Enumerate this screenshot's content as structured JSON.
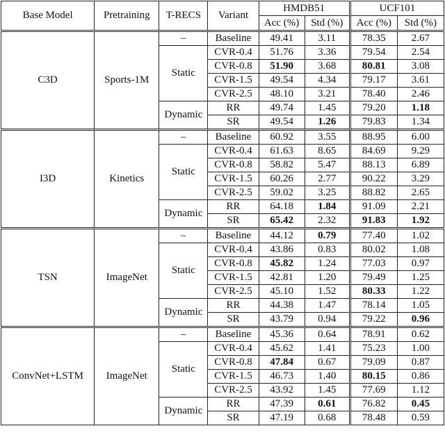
{
  "header": {
    "base_model": "Base Model",
    "pretraining": "Pretraining",
    "trecs": "T-RECS",
    "variant": "Variant",
    "datasets": [
      {
        "name": "HMDB51",
        "columns": [
          "Acc (%)",
          "Std (%)"
        ]
      },
      {
        "name": "UCF101",
        "columns": [
          "Acc (%)",
          "Std (%)"
        ]
      }
    ]
  },
  "groups": [
    {
      "base_model": "C3D",
      "pretraining": "Sports-1M",
      "recs": [
        {
          "label": "–",
          "rows": [
            {
              "variant": "Baseline",
              "cells": [
                "49.41",
                "3.11",
                "78.35",
                "2.67"
              ]
            }
          ]
        },
        {
          "label": "Static",
          "rows": [
            {
              "variant": "CVR-0.4",
              "cells": [
                "51.76",
                "3.36",
                "79.54",
                "2.54"
              ]
            },
            {
              "variant": "CVR-0.8",
              "cells": [
                "51.90",
                "3.68",
                "80.81",
                "3.08"
              ],
              "bold": [
                0,
                2
              ]
            },
            {
              "variant": "CVR-1.5",
              "cells": [
                "49.54",
                "4.34",
                "79.17",
                "3.61"
              ]
            },
            {
              "variant": "CVR-2.5",
              "cells": [
                "48.10",
                "3.21",
                "78.40",
                "2.46"
              ]
            }
          ]
        },
        {
          "label": "Dynamic",
          "rows": [
            {
              "variant": "RR",
              "cells": [
                "49.74",
                "1.45",
                "79.20",
                "1.18"
              ],
              "bold": [
                3
              ]
            },
            {
              "variant": "SR",
              "cells": [
                "49.54",
                "1.26",
                "79.83",
                "1.34"
              ],
              "bold": [
                1
              ]
            }
          ]
        }
      ]
    },
    {
      "base_model": "I3D",
      "pretraining": "Kinetics",
      "recs": [
        {
          "label": "–",
          "rows": [
            {
              "variant": "Baseline",
              "cells": [
                "60.92",
                "3.55",
                "88.95",
                "6.00"
              ]
            }
          ]
        },
        {
          "label": "Static",
          "rows": [
            {
              "variant": "CVR-0.4",
              "cells": [
                "61.63",
                "8.65",
                "84.69",
                "9.29"
              ]
            },
            {
              "variant": "CVR-0.8",
              "cells": [
                "58.82",
                "5.47",
                "88.13",
                "6.89"
              ]
            },
            {
              "variant": "CVR-1.5",
              "cells": [
                "60.26",
                "2.77",
                "90.22",
                "3.29"
              ]
            },
            {
              "variant": "CVR-2.5",
              "cells": [
                "59.02",
                "3.25",
                "88.82",
                "2.65"
              ]
            }
          ]
        },
        {
          "label": "Dynamic",
          "rows": [
            {
              "variant": "RR",
              "cells": [
                "64.18",
                "1.84",
                "91.09",
                "2.21"
              ],
              "bold": [
                1
              ]
            },
            {
              "variant": "SR",
              "cells": [
                "65.42",
                "2.32",
                "91.83",
                "1.92"
              ],
              "bold": [
                0,
                2,
                3
              ]
            }
          ]
        }
      ]
    },
    {
      "base_model": "TSN",
      "pretraining": "ImageNet",
      "recs": [
        {
          "label": "–",
          "rows": [
            {
              "variant": "Baseline",
              "cells": [
                "44.12",
                "0.79",
                "77.40",
                "1.02"
              ],
              "bold": [
                1
              ]
            }
          ]
        },
        {
          "label": "Static",
          "rows": [
            {
              "variant": "CVR-0.4",
              "cells": [
                "43.86",
                "0.83",
                "80.02",
                "1.08"
              ]
            },
            {
              "variant": "CVR-0.8",
              "cells": [
                "45.82",
                "1.24",
                "77.03",
                "0.97"
              ],
              "bold": [
                0
              ]
            },
            {
              "variant": "CVR-1.5",
              "cells": [
                "42.81",
                "1.20",
                "79.49",
                "1.25"
              ]
            },
            {
              "variant": "CVR-2.5",
              "cells": [
                "45.10",
                "1.52",
                "80.33",
                "1.22"
              ],
              "bold": [
                2
              ]
            }
          ]
        },
        {
          "label": "Dynamic",
          "rows": [
            {
              "variant": "RR",
              "cells": [
                "44.38",
                "1.47",
                "78.14",
                "1.05"
              ]
            },
            {
              "variant": "SR",
              "cells": [
                "43.79",
                "0.94",
                "79.22",
                "0.96"
              ],
              "bold": [
                3
              ]
            }
          ]
        }
      ]
    },
    {
      "base_model": "ConvNet+LSTM",
      "pretraining": "ImageNet",
      "recs": [
        {
          "label": "–",
          "rows": [
            {
              "variant": "Baseline",
              "cells": [
                "45.36",
                "0.64",
                "78.91",
                "0.62"
              ]
            }
          ]
        },
        {
          "label": "Static",
          "rows": [
            {
              "variant": "CVR-0.4",
              "cells": [
                "45.62",
                "1.41",
                "75.23",
                "1.00"
              ]
            },
            {
              "variant": "CVR-0.8",
              "cells": [
                "47.84",
                "0.67",
                "79.09",
                "0.87"
              ],
              "bold": [
                0
              ]
            },
            {
              "variant": "CVR-1.5",
              "cells": [
                "46.73",
                "1.40",
                "80.15",
                "0.86"
              ],
              "bold": [
                2
              ]
            },
            {
              "variant": "CVR-2.5",
              "cells": [
                "43.92",
                "1.45",
                "77.69",
                "1.12"
              ]
            }
          ]
        },
        {
          "label": "Dynamic",
          "rows": [
            {
              "variant": "RR",
              "cells": [
                "47.39",
                "0.61",
                "76.82",
                "0.45"
              ],
              "bold": [
                1,
                3
              ]
            },
            {
              "variant": "SR",
              "cells": [
                "47.19",
                "0.68",
                "78.48",
                "0.59"
              ]
            }
          ]
        }
      ]
    }
  ]
}
